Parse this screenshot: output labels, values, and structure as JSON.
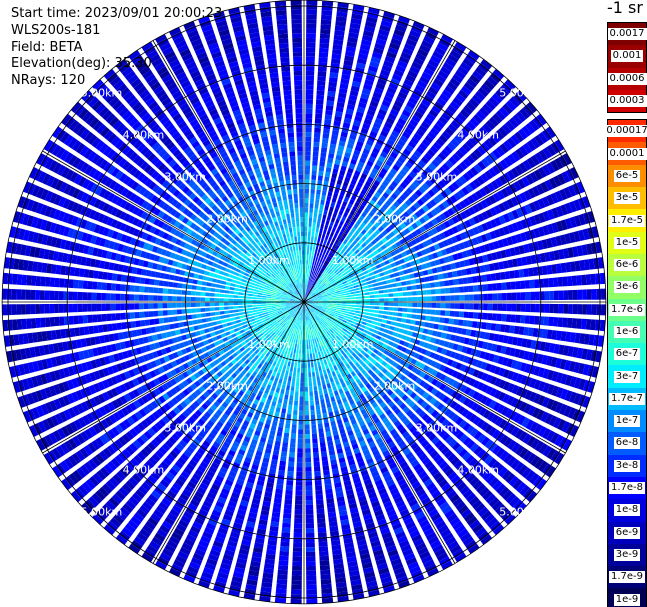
{
  "header": {
    "start_time": "Start time: 2023/09/01 20:00:23",
    "instrument": "WLS200s-181",
    "field": "Field: BETA",
    "elevation": "Elevation(deg): 35.30",
    "nrays": "NRays: 120"
  },
  "colorbar": {
    "unit": "-1 sr",
    "upper_labels": [
      "0.0017",
      "0.001",
      "0.0006",
      "0.0003"
    ],
    "upper_colors": [
      "#7f0000",
      "#9a0000",
      "#b40000",
      "#d00000"
    ],
    "labels": [
      "0.00017",
      "0.0001",
      "6e-5",
      "3e-5",
      "1.7e-5",
      "1e-5",
      "6e-6",
      "3e-6",
      "1.7e-6",
      "1e-6",
      "6e-7",
      "3e-7",
      "1.7e-7",
      "1e-7",
      "6e-8",
      "3e-8",
      "1.7e-8",
      "1e-8",
      "6e-9",
      "3e-9",
      "1.7e-9",
      "1e-9"
    ],
    "colors": [
      "#ff2a00",
      "#ff5b00",
      "#ff8d00",
      "#ffbd00",
      "#ffee00",
      "#e1ff16",
      "#b9ff3e",
      "#92ff65",
      "#6cff8b",
      "#44ffb3",
      "#1cffda",
      "#00ecff",
      "#00bcff",
      "#008cff",
      "#005cff",
      "#002cff",
      "#0000ff",
      "#0000de",
      "#0000bc",
      "#00009a",
      "#000077",
      "#000055"
    ]
  },
  "chart_data": {
    "type": "heatmap",
    "projection": "polar PPI",
    "field": "BETA",
    "units": "sr-1",
    "elevation_deg": 35.3,
    "n_rays": 120,
    "range_rings_km": [
      1,
      2,
      3,
      4,
      5
    ],
    "ring_labels": [
      "1.00km",
      "2.00km",
      "3.00km",
      "4.00km",
      "5.00km"
    ],
    "max_range_km": 5.1,
    "azimuth_spokes_deg": [
      0,
      30,
      60,
      90,
      120,
      150,
      180,
      210,
      240,
      270,
      300,
      330
    ],
    "color_scale": "log",
    "value_range": [
      1e-09,
      0.0017
    ],
    "radial_profile": [
      {
        "range_km": 0.0,
        "beta": 1.7e-07
      },
      {
        "range_km": 0.5,
        "beta": 6e-07
      },
      {
        "range_km": 1.0,
        "beta": 3e-07
      },
      {
        "range_km": 1.5,
        "beta": 1.7e-07
      },
      {
        "range_km": 2.0,
        "beta": 1e-07
      },
      {
        "range_km": 2.5,
        "beta": 6e-08
      },
      {
        "range_km": 3.0,
        "beta": 3e-08
      },
      {
        "range_km": 3.5,
        "beta": 1.7e-08
      },
      {
        "range_km": 4.0,
        "beta": 1.7e-08
      },
      {
        "range_km": 4.5,
        "beta": 1e-08
      },
      {
        "range_km": 5.0,
        "beta": 1e-08
      }
    ]
  }
}
